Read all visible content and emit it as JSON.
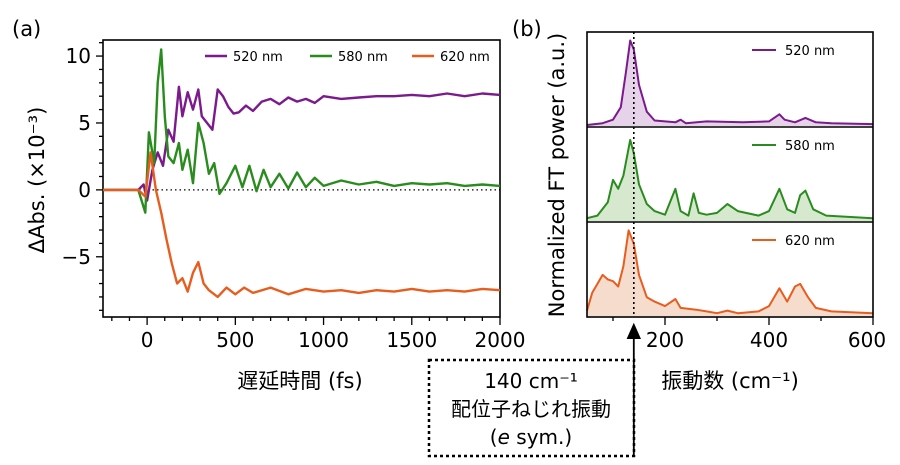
{
  "chart_data": [
    {
      "type": "line",
      "panel_label": "(a)",
      "xlabel": "遅延時間 (fs)",
      "ylabel": "ΔAbs. (×10⁻³)",
      "xlim": [
        -250,
        2000
      ],
      "ylim": [
        -9.5,
        11.2
      ],
      "x_ticks": [
        0,
        500,
        1000,
        1500,
        2000
      ],
      "x_tick_labels": [
        "0",
        "500",
        "1000",
        "1500",
        "2000"
      ],
      "y_ticks": [
        10,
        5,
        0,
        -5
      ],
      "y_tick_labels": [
        "10",
        "5",
        "0",
        "−5"
      ],
      "zero_line": true,
      "legend_position": "top",
      "series": [
        {
          "name": "520 nm",
          "color": "#7b1a8c",
          "points": [
            [
              -250,
              0
            ],
            [
              -50,
              0
            ],
            [
              -20,
              0.4
            ],
            [
              0,
              -0.8
            ],
            [
              30,
              1.5
            ],
            [
              60,
              2.8
            ],
            [
              90,
              1.8
            ],
            [
              120,
              4.5
            ],
            [
              150,
              3.6
            ],
            [
              180,
              7.7
            ],
            [
              200,
              5.5
            ],
            [
              230,
              7.3
            ],
            [
              260,
              6.0
            ],
            [
              290,
              7.5
            ],
            [
              310,
              5.5
            ],
            [
              340,
              5.0
            ],
            [
              370,
              4.5
            ],
            [
              400,
              7.5
            ],
            [
              430,
              7.0
            ],
            [
              460,
              6.2
            ],
            [
              490,
              5.7
            ],
            [
              520,
              5.8
            ],
            [
              560,
              6.3
            ],
            [
              600,
              5.9
            ],
            [
              650,
              6.6
            ],
            [
              700,
              6.8
            ],
            [
              750,
              6.4
            ],
            [
              800,
              6.9
            ],
            [
              850,
              6.6
            ],
            [
              900,
              6.8
            ],
            [
              950,
              6.5
            ],
            [
              1000,
              7.0
            ],
            [
              1100,
              6.8
            ],
            [
              1200,
              6.9
            ],
            [
              1300,
              7.0
            ],
            [
              1400,
              7.0
            ],
            [
              1500,
              7.1
            ],
            [
              1600,
              7.0
            ],
            [
              1700,
              7.2
            ],
            [
              1800,
              7.0
            ],
            [
              1900,
              7.2
            ],
            [
              2000,
              7.1
            ]
          ]
        },
        {
          "name": "580 nm",
          "color": "#2a8c1e",
          "points": [
            [
              -250,
              0
            ],
            [
              -50,
              0
            ],
            [
              -10,
              -1.7
            ],
            [
              10,
              4.3
            ],
            [
              40,
              2.0
            ],
            [
              60,
              8.0
            ],
            [
              80,
              10.5
            ],
            [
              100,
              5.5
            ],
            [
              120,
              2.5
            ],
            [
              150,
              2.0
            ],
            [
              180,
              3.5
            ],
            [
              200,
              1.5
            ],
            [
              230,
              3.0
            ],
            [
              260,
              0.5
            ],
            [
              290,
              5.0
            ],
            [
              320,
              3.5
            ],
            [
              350,
              1.2
            ],
            [
              380,
              2.0
            ],
            [
              410,
              -0.3
            ],
            [
              450,
              0.5
            ],
            [
              500,
              1.8
            ],
            [
              540,
              0.2
            ],
            [
              580,
              1.8
            ],
            [
              620,
              -0.1
            ],
            [
              660,
              1.5
            ],
            [
              700,
              0.2
            ],
            [
              750,
              1.2
            ],
            [
              800,
              0.1
            ],
            [
              850,
              1.3
            ],
            [
              900,
              0.2
            ],
            [
              950,
              0.9
            ],
            [
              1000,
              0.3
            ],
            [
              1100,
              0.7
            ],
            [
              1200,
              0.4
            ],
            [
              1300,
              0.6
            ],
            [
              1400,
              0.3
            ],
            [
              1500,
              0.5
            ],
            [
              1600,
              0.4
            ],
            [
              1700,
              0.5
            ],
            [
              1800,
              0.3
            ],
            [
              1900,
              0.4
            ],
            [
              2000,
              0.3
            ]
          ]
        },
        {
          "name": "620 nm",
          "color": "#e85d1e",
          "points": [
            [
              -250,
              0
            ],
            [
              -50,
              0
            ],
            [
              -10,
              -0.5
            ],
            [
              20,
              2.8
            ],
            [
              50,
              0.0
            ],
            [
              80,
              -1.7
            ],
            [
              110,
              -3.7
            ],
            [
              140,
              -5.5
            ],
            [
              170,
              -7.0
            ],
            [
              200,
              -6.6
            ],
            [
              230,
              -7.6
            ],
            [
              260,
              -6.2
            ],
            [
              290,
              -5.4
            ],
            [
              320,
              -7.0
            ],
            [
              350,
              -7.5
            ],
            [
              400,
              -8.0
            ],
            [
              450,
              -7.3
            ],
            [
              500,
              -7.8
            ],
            [
              550,
              -7.3
            ],
            [
              600,
              -7.7
            ],
            [
              700,
              -7.3
            ],
            [
              800,
              -7.8
            ],
            [
              900,
              -7.4
            ],
            [
              1000,
              -7.6
            ],
            [
              1100,
              -7.5
            ],
            [
              1200,
              -7.7
            ],
            [
              1300,
              -7.5
            ],
            [
              1400,
              -7.6
            ],
            [
              1500,
              -7.4
            ],
            [
              1600,
              -7.6
            ],
            [
              1700,
              -7.5
            ],
            [
              1800,
              -7.6
            ],
            [
              1900,
              -7.4
            ],
            [
              2000,
              -7.5
            ]
          ]
        }
      ]
    },
    {
      "type": "area",
      "panel_label": "(b)",
      "xlabel": "振動数 (cm⁻¹)",
      "ylabel": "Normalized FT power (a.u.)",
      "xlim": [
        50,
        600
      ],
      "x_ticks": [
        200,
        400,
        600
      ],
      "x_tick_labels": [
        "200",
        "400",
        "600"
      ],
      "marker_line_x": 140,
      "stacked_panels": true,
      "series": [
        {
          "name": "520 nm",
          "color": "#7b1a8c",
          "fill": "#e6d3ea",
          "points": [
            [
              50,
              0
            ],
            [
              80,
              0.02
            ],
            [
              100,
              0.06
            ],
            [
              115,
              0.2
            ],
            [
              125,
              0.6
            ],
            [
              133,
              0.95
            ],
            [
              140,
              0.85
            ],
            [
              150,
              0.45
            ],
            [
              165,
              0.15
            ],
            [
              180,
              0.05
            ],
            [
              220,
              0.03
            ],
            [
              230,
              0.06
            ],
            [
              240,
              0.02
            ],
            [
              280,
              0.04
            ],
            [
              350,
              0.03
            ],
            [
              400,
              0.04
            ],
            [
              420,
              0.12
            ],
            [
              430,
              0.06
            ],
            [
              450,
              0.03
            ],
            [
              470,
              0.08
            ],
            [
              490,
              0.03
            ],
            [
              520,
              0.02
            ],
            [
              600,
              0.01
            ]
          ]
        },
        {
          "name": "580 nm",
          "color": "#2a8c1e",
          "fill": "#d6e9cf",
          "points": [
            [
              50,
              0.02
            ],
            [
              70,
              0.05
            ],
            [
              90,
              0.2
            ],
            [
              100,
              0.45
            ],
            [
              110,
              0.35
            ],
            [
              120,
              0.5
            ],
            [
              133,
              0.9
            ],
            [
              140,
              0.75
            ],
            [
              150,
              0.4
            ],
            [
              165,
              0.18
            ],
            [
              180,
              0.1
            ],
            [
              200,
              0.06
            ],
            [
              220,
              0.35
            ],
            [
              230,
              0.1
            ],
            [
              245,
              0.05
            ],
            [
              255,
              0.3
            ],
            [
              265,
              0.08
            ],
            [
              280,
              0.06
            ],
            [
              300,
              0.08
            ],
            [
              320,
              0.18
            ],
            [
              340,
              0.1
            ],
            [
              380,
              0.05
            ],
            [
              400,
              0.1
            ],
            [
              420,
              0.35
            ],
            [
              435,
              0.12
            ],
            [
              450,
              0.08
            ],
            [
              460,
              0.28
            ],
            [
              470,
              0.33
            ],
            [
              485,
              0.12
            ],
            [
              510,
              0.05
            ],
            [
              600,
              0.02
            ]
          ]
        },
        {
          "name": "620 nm",
          "color": "#e85d1e",
          "fill": "#f5dccd",
          "points": [
            [
              50,
              0.05
            ],
            [
              60,
              0.25
            ],
            [
              70,
              0.35
            ],
            [
              80,
              0.45
            ],
            [
              90,
              0.4
            ],
            [
              100,
              0.38
            ],
            [
              110,
              0.32
            ],
            [
              120,
              0.55
            ],
            [
              130,
              0.95
            ],
            [
              140,
              0.8
            ],
            [
              150,
              0.45
            ],
            [
              165,
              0.2
            ],
            [
              180,
              0.15
            ],
            [
              200,
              0.1
            ],
            [
              220,
              0.18
            ],
            [
              230,
              0.08
            ],
            [
              260,
              0.06
            ],
            [
              280,
              0.04
            ],
            [
              300,
              0.02
            ],
            [
              320,
              0.05
            ],
            [
              340,
              0.02
            ],
            [
              380,
              0.04
            ],
            [
              400,
              0.1
            ],
            [
              420,
              0.3
            ],
            [
              435,
              0.15
            ],
            [
              450,
              0.32
            ],
            [
              460,
              0.35
            ],
            [
              475,
              0.2
            ],
            [
              490,
              0.08
            ],
            [
              520,
              0.04
            ],
            [
              600,
              0.02
            ]
          ]
        }
      ]
    }
  ],
  "annotation": {
    "line1": "140 cm⁻¹",
    "line2": "配位子ねじれ振動",
    "line3_prefix": "(",
    "line3_italic": "e",
    "line3_suffix": " sym.)"
  }
}
